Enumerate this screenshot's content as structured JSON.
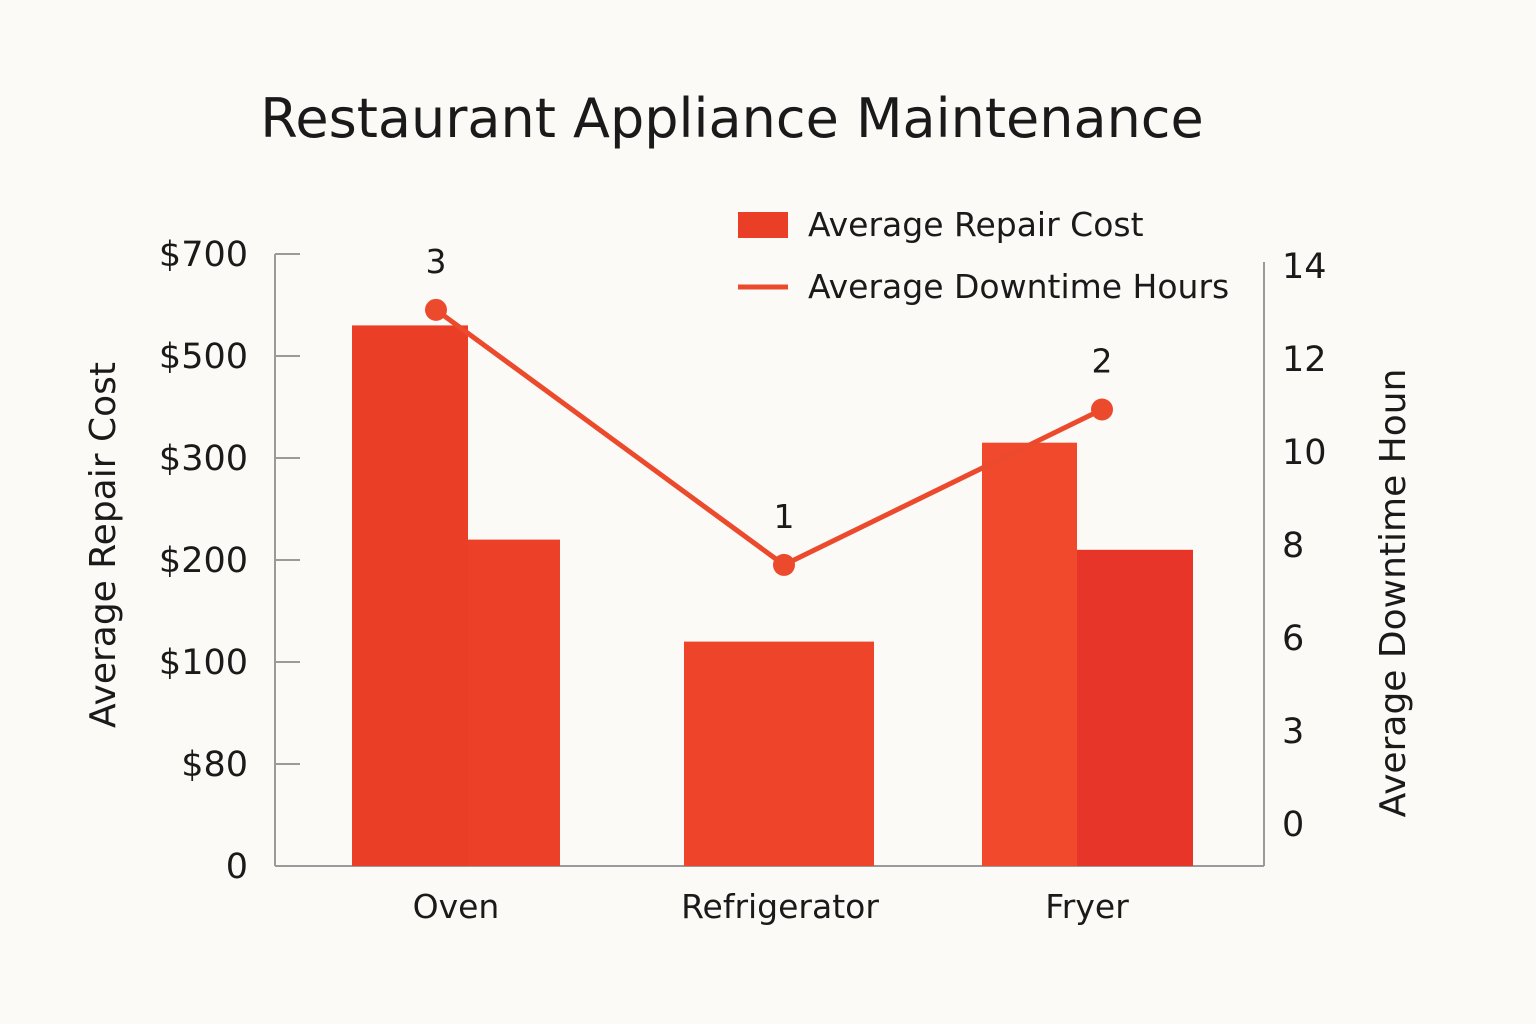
{
  "chart_data": {
    "type": "bar",
    "title": "Restaurant Appliance Maintenance",
    "categories": [
      "Oven",
      "Refrigerator",
      "Fryer"
    ],
    "left_axis": {
      "label": "Average Repair Cost",
      "tick_labels": [
        "0",
        "$80",
        "$100",
        "$200",
        "$300",
        "$500",
        "$700"
      ]
    },
    "right_axis": {
      "label": "Average Downtime Houn",
      "tick_labels": [
        "0",
        "3",
        "6",
        "8",
        "10",
        "12",
        "14"
      ]
    },
    "series": [
      {
        "name": "Average Repair Cost",
        "kind": "bar",
        "color": "#ea3f26",
        "bars": [
          {
            "category": "Oven",
            "value": "$560",
            "secondary_value": "$220"
          },
          {
            "category": "Refrigerator",
            "value": "$120"
          },
          {
            "category": "Fryer",
            "value": "$210",
            "secondary_value": "$330"
          }
        ]
      },
      {
        "name": "Average Downtime Hours",
        "kind": "line",
        "color": "#ec4a2d",
        "points": [
          {
            "category": "Oven",
            "value": 12.9,
            "label": "3"
          },
          {
            "category": "Refrigerator",
            "value": 6.5,
            "label": "1"
          },
          {
            "category": "Fryer",
            "value": 10.4,
            "label": "2"
          }
        ]
      }
    ],
    "legend": {
      "position": "top-right",
      "items": [
        "Average Repair Cost",
        "Average Downtime Hours"
      ]
    },
    "grid": false
  }
}
